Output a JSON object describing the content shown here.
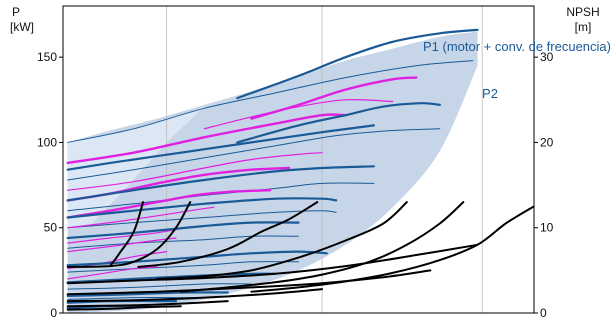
{
  "chart_data": {
    "type": "line",
    "title": "",
    "left_axis": {
      "label": "P",
      "unit": "[kW]",
      "ylim": [
        0,
        180
      ],
      "ticks": [
        0,
        50,
        100,
        150
      ]
    },
    "right_axis": {
      "label": "NPSH",
      "unit": "[m]",
      "ylim": [
        0,
        36
      ],
      "ticks": [
        0,
        10,
        20,
        30
      ]
    },
    "xlim": [
      0,
      100
    ],
    "grid": "vertical",
    "annotations": [
      {
        "text": "P1 (motor + conv. de frecuencia)",
        "color": "#1a5a96"
      },
      {
        "text": "P2",
        "color": "#1a5a96"
      }
    ],
    "colors": {
      "p1_series": "#1a5a96",
      "p2_series": "#1a5a96",
      "magenta_series": "#e020e0",
      "npsh_series": "#000000",
      "envelope_fill": "#c7d5e8",
      "secondary_fill": "#deeaf7"
    },
    "envelope": {
      "upper": [
        [
          1,
          100
        ],
        [
          10,
          107
        ],
        [
          20,
          114
        ],
        [
          30,
          122
        ],
        [
          40,
          130
        ],
        [
          50,
          139
        ],
        [
          60,
          148
        ],
        [
          70,
          155
        ],
        [
          80,
          162
        ],
        [
          88,
          165
        ]
      ],
      "lower": [
        [
          1,
          0
        ],
        [
          10,
          1
        ],
        [
          20,
          3
        ],
        [
          30,
          8
        ],
        [
          40,
          15
        ],
        [
          50,
          25
        ],
        [
          60,
          40
        ],
        [
          70,
          62
        ],
        [
          80,
          95
        ],
        [
          88,
          145
        ]
      ]
    },
    "secondary_envelope": [
      [
        1,
        100
      ],
      [
        15,
        108
      ],
      [
        25,
        116
      ],
      [
        30,
        121
      ],
      [
        22,
        100
      ],
      [
        14,
        75
      ],
      [
        6,
        52
      ],
      [
        1,
        50
      ]
    ],
    "series_p1": [
      [
        [
          37,
          126
        ],
        [
          50,
          139
        ],
        [
          60,
          150
        ],
        [
          70,
          159
        ],
        [
          80,
          164
        ],
        [
          88,
          166
        ]
      ],
      [
        [
          37,
          100
        ],
        [
          50,
          110
        ],
        [
          60,
          116
        ],
        [
          68,
          121
        ],
        [
          76,
          123
        ],
        [
          80,
          122
        ]
      ],
      [
        [
          1,
          84
        ],
        [
          10,
          88
        ],
        [
          25,
          94
        ],
        [
          40,
          100
        ],
        [
          55,
          106
        ],
        [
          66,
          110
        ]
      ],
      [
        [
          1,
          66
        ],
        [
          15,
          72
        ],
        [
          30,
          78
        ],
        [
          45,
          83
        ],
        [
          55,
          85
        ],
        [
          66,
          86
        ]
      ],
      [
        [
          1,
          56
        ],
        [
          15,
          60
        ],
        [
          30,
          64
        ],
        [
          45,
          67
        ],
        [
          55,
          67
        ],
        [
          58,
          66
        ]
      ],
      [
        [
          1,
          44
        ],
        [
          15,
          47
        ],
        [
          30,
          51
        ],
        [
          40,
          53
        ],
        [
          50,
          53
        ]
      ],
      [
        [
          1,
          28
        ],
        [
          15,
          30
        ],
        [
          30,
          33
        ],
        [
          40,
          35
        ],
        [
          50,
          36
        ],
        [
          56,
          35
        ]
      ],
      [
        [
          1,
          18
        ],
        [
          15,
          20
        ],
        [
          30,
          22
        ],
        [
          40,
          23
        ],
        [
          45,
          23
        ]
      ],
      [
        [
          1,
          10
        ],
        [
          15,
          11
        ],
        [
          25,
          12
        ],
        [
          35,
          12
        ]
      ],
      [
        [
          1,
          6
        ],
        [
          10,
          7
        ],
        [
          20,
          7
        ],
        [
          24,
          7
        ]
      ],
      [
        [
          1,
          3
        ],
        [
          10,
          4
        ],
        [
          18,
          4
        ]
      ]
    ],
    "series_p2": [
      [
        [
          1,
          100
        ],
        [
          15,
          108
        ],
        [
          30,
          120
        ],
        [
          45,
          129
        ],
        [
          60,
          138
        ],
        [
          75,
          145
        ],
        [
          87,
          148
        ]
      ],
      [
        [
          1,
          78
        ],
        [
          15,
          84
        ],
        [
          30,
          91
        ],
        [
          45,
          98
        ],
        [
          58,
          104
        ],
        [
          70,
          107
        ],
        [
          80,
          108
        ]
      ],
      [
        [
          1,
          60
        ],
        [
          15,
          64
        ],
        [
          30,
          69
        ],
        [
          45,
          73
        ],
        [
          55,
          76
        ],
        [
          66,
          76
        ]
      ],
      [
        [
          1,
          50
        ],
        [
          15,
          53
        ],
        [
          30,
          56
        ],
        [
          45,
          59
        ],
        [
          55,
          60
        ],
        [
          58,
          59
        ]
      ],
      [
        [
          1,
          38
        ],
        [
          15,
          41
        ],
        [
          30,
          43
        ],
        [
          40,
          45
        ],
        [
          50,
          45
        ]
      ],
      [
        [
          1,
          24
        ],
        [
          15,
          26
        ],
        [
          30,
          28
        ],
        [
          40,
          30
        ],
        [
          50,
          30
        ]
      ],
      [
        [
          1,
          14
        ],
        [
          15,
          15
        ],
        [
          30,
          17
        ],
        [
          40,
          17
        ]
      ],
      [
        [
          1,
          8
        ],
        [
          15,
          9
        ],
        [
          25,
          9
        ],
        [
          32,
          9
        ]
      ]
    ],
    "series_magenta": [
      [
        [
          40,
          114
        ],
        [
          50,
          122
        ],
        [
          60,
          131
        ],
        [
          70,
          137
        ],
        [
          75,
          138
        ]
      ],
      [
        [
          1,
          88
        ],
        [
          15,
          94
        ],
        [
          30,
          103
        ],
        [
          45,
          111
        ],
        [
          55,
          116
        ],
        [
          60,
          116
        ]
      ],
      [
        [
          30,
          108
        ],
        [
          40,
          115
        ],
        [
          50,
          121
        ],
        [
          60,
          125
        ],
        [
          70,
          124
        ]
      ],
      [
        [
          1,
          72
        ],
        [
          15,
          77
        ],
        [
          30,
          85
        ],
        [
          40,
          90
        ],
        [
          50,
          93
        ],
        [
          55,
          94
        ]
      ],
      [
        [
          1,
          66
        ],
        [
          10,
          70
        ],
        [
          20,
          76
        ],
        [
          30,
          81
        ],
        [
          40,
          84
        ],
        [
          48,
          85
        ]
      ],
      [
        [
          1,
          56
        ],
        [
          10,
          60
        ],
        [
          20,
          65
        ],
        [
          28,
          69
        ],
        [
          35,
          71
        ],
        [
          44,
          72
        ]
      ],
      [
        [
          1,
          50
        ],
        [
          10,
          53
        ],
        [
          20,
          57
        ],
        [
          27,
          60
        ],
        [
          32,
          62
        ]
      ],
      [
        [
          1,
          41
        ],
        [
          10,
          44
        ],
        [
          20,
          47
        ],
        [
          26,
          50
        ],
        [
          30,
          51
        ]
      ],
      [
        [
          1,
          36
        ],
        [
          10,
          39
        ],
        [
          18,
          42
        ],
        [
          24,
          44
        ]
      ],
      [
        [
          1,
          26
        ],
        [
          8,
          29
        ],
        [
          15,
          33
        ],
        [
          22,
          36
        ]
      ],
      [
        [
          1,
          20
        ],
        [
          8,
          23
        ],
        [
          15,
          26
        ],
        [
          20,
          27
        ]
      ]
    ],
    "series_npsh": [
      [
        [
          10,
          5.5
        ],
        [
          12,
          7
        ],
        [
          15,
          9.5
        ],
        [
          17,
          13
        ]
      ],
      [
        [
          1,
          5.4
        ],
        [
          10,
          5.5
        ],
        [
          15,
          6
        ],
        [
          20,
          7.5
        ],
        [
          24,
          10
        ],
        [
          27,
          13
        ]
      ],
      [
        [
          16,
          5.4
        ],
        [
          25,
          6
        ],
        [
          35,
          7.5
        ],
        [
          42,
          9.5
        ],
        [
          48,
          11
        ],
        [
          54,
          13
        ]
      ],
      [
        [
          20,
          4
        ],
        [
          30,
          4.3
        ],
        [
          40,
          5
        ],
        [
          50,
          6.5
        ],
        [
          60,
          8.5
        ],
        [
          68,
          10.5
        ],
        [
          73,
          13
        ]
      ],
      [
        [
          25,
          2.5
        ],
        [
          35,
          3
        ],
        [
          45,
          3.6
        ],
        [
          55,
          4.5
        ],
        [
          65,
          6
        ],
        [
          73,
          8
        ],
        [
          80,
          10.5
        ],
        [
          85,
          13
        ]
      ],
      [
        [
          40,
          2.5
        ],
        [
          50,
          3
        ],
        [
          60,
          3.7
        ],
        [
          70,
          4.7
        ],
        [
          80,
          6.2
        ],
        [
          88,
          8
        ],
        [
          94,
          10.5
        ],
        [
          100,
          12.5
        ]
      ],
      [
        [
          1,
          3.5
        ],
        [
          15,
          3.8
        ],
        [
          30,
          4.1
        ],
        [
          45,
          4.6
        ],
        [
          60,
          5.5
        ],
        [
          75,
          6.8
        ],
        [
          88,
          8
        ]
      ],
      [
        [
          1,
          2.2
        ],
        [
          20,
          2.5
        ],
        [
          40,
          3
        ],
        [
          55,
          3.5
        ],
        [
          68,
          4.2
        ],
        [
          78,
          5
        ]
      ],
      [
        [
          1,
          1.4
        ],
        [
          15,
          1.5
        ],
        [
          30,
          1.8
        ],
        [
          45,
          2.3
        ],
        [
          55,
          2.8
        ]
      ],
      [
        [
          1,
          0.8
        ],
        [
          15,
          0.9
        ],
        [
          25,
          1.1
        ],
        [
          35,
          1.4
        ]
      ],
      [
        [
          1,
          0.4
        ],
        [
          10,
          0.5
        ],
        [
          18,
          0.7
        ],
        [
          25,
          0.8
        ]
      ]
    ]
  }
}
